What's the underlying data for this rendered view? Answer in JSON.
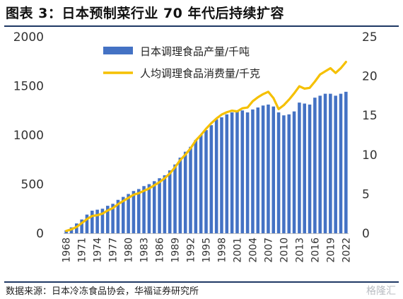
{
  "figure_title": "图表 3：日本预制菜行业 70 年代后持续扩容",
  "source_note": "数据来源：日本冷冻食品协会，华福证券研究所",
  "watermark": "格隆汇",
  "colors": {
    "bar": "#4472c4",
    "line": "#f5c000",
    "rule": "#1f3864",
    "text": "#333333"
  },
  "chart_data": {
    "type": "bar",
    "title": "",
    "xlabel": "",
    "ylabel": "",
    "ylabel_right": "",
    "x": [
      1968,
      1969,
      1970,
      1971,
      1972,
      1973,
      1974,
      1975,
      1976,
      1977,
      1978,
      1979,
      1980,
      1981,
      1982,
      1983,
      1984,
      1985,
      1986,
      1987,
      1988,
      1989,
      1990,
      1991,
      1992,
      1993,
      1994,
      1995,
      1996,
      1997,
      1998,
      1999,
      2000,
      2001,
      2002,
      2003,
      2004,
      2005,
      2006,
      2007,
      2008,
      2009,
      2010,
      2011,
      2012,
      2013,
      2014,
      2015,
      2016,
      2017,
      2018,
      2019,
      2020,
      2021,
      2022
    ],
    "x_tick_labels": [
      "1968",
      "1971",
      "1974",
      "1977",
      "1980",
      "1983",
      "1986",
      "1989",
      "1992",
      "1995",
      "1998",
      "2001",
      "2004",
      "2007",
      "2010",
      "2013",
      "2016",
      "2019",
      "2022"
    ],
    "ylim_left": [
      0,
      2000
    ],
    "yticks_left": [
      0,
      500,
      1000,
      1500,
      2000
    ],
    "ylim_right": [
      0,
      25
    ],
    "yticks_right": [
      0,
      5,
      10,
      15,
      20,
      25
    ],
    "legend_position": "top",
    "series": [
      {
        "name": "日本调理食品产量/千吨",
        "type": "bar",
        "axis": "left",
        "values": [
          30,
          60,
          100,
          140,
          190,
          230,
          240,
          250,
          280,
          300,
          340,
          370,
          400,
          430,
          450,
          480,
          500,
          530,
          560,
          590,
          640,
          700,
          770,
          830,
          880,
          950,
          1000,
          1050,
          1100,
          1160,
          1180,
          1210,
          1230,
          1240,
          1250,
          1230,
          1260,
          1280,
          1300,
          1310,
          1290,
          1230,
          1200,
          1210,
          1240,
          1330,
          1320,
          1310,
          1380,
          1400,
          1420,
          1420,
          1400,
          1420,
          1440
        ]
      },
      {
        "name": "人均调理食品消费量/千克",
        "type": "line",
        "axis": "right",
        "values": [
          0.3,
          0.5,
          0.8,
          1.3,
          1.8,
          2.2,
          2.3,
          2.5,
          2.9,
          3.2,
          3.7,
          4.1,
          4.5,
          4.9,
          5.1,
          5.4,
          5.7,
          6.1,
          6.5,
          7.0,
          7.6,
          8.4,
          9.3,
          10.0,
          10.8,
          11.8,
          12.5,
          13.3,
          14.0,
          14.6,
          15.1,
          15.4,
          15.6,
          15.5,
          15.9,
          16.0,
          16.8,
          17.3,
          17.7,
          18.0,
          17.2,
          15.8,
          16.3,
          17.0,
          17.8,
          18.7,
          18.4,
          18.5,
          19.3,
          20.2,
          20.6,
          21.0,
          20.4,
          21.0,
          21.8
        ]
      }
    ]
  }
}
